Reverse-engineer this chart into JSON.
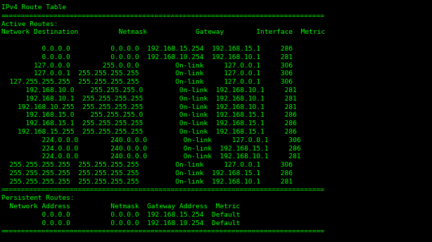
{
  "bg_color": "#000000",
  "text_color": "#00FF00",
  "figsize": [
    6.14,
    3.44
  ],
  "dpi": 100,
  "font_size": 6.8,
  "lines": [
    "IPv4 Route Table",
    "================================================================================",
    "Active Routes:",
    "Network Destination          Netmask            Gateway        Interface  Metric",
    "",
    "          0.0.0.0          0.0.0.0  192.168.15.254  192.168.15.1     286",
    "          0.0.0.0          0.0.0.0  192.168.10.254  192.168.10.1     281",
    "        127.0.0.0        255.0.0.0         On-link     127.0.0.1     306",
    "        127.0.0.1  255.255.255.255         On-link     127.0.0.1     306",
    "  127.255.255.255  255.255.255.255         On-link     127.0.0.1     306",
    "      192.168.10.0    255.255.255.0         On-link  192.168.10.1     281",
    "      192.168.10.1  255.255.255.255         On-link  192.168.10.1     281",
    "    192.168.10.255  255.255.255.255         On-link  192.168.10.1     281",
    "      192.168.15.0    255.255.255.0         On-link  192.168.15.1     286",
    "      192.168.15.1  255.255.255.255         On-link  192.168.15.1     286",
    "    192.168.15.255  255.255.255.255         On-link  192.168.15.1     286",
    "          224.0.0.0        240.0.0.0         On-link     127.0.0.1     306",
    "          224.0.0.0        240.0.0.0         On-link  192.168.15.1     286",
    "          224.0.0.0        240.0.0.0         On-link  192.168.10.1     281",
    "  255.255.255.255  255.255.255.255         On-link     127.0.0.1     306",
    "  255.255.255.255  255.255.255.255         On-link  192.168.15.1     286",
    "  255.255.255.255  255.255.255.255         On-link  192.168.10.1     281",
    "================================================================================",
    "Persistent Routes:",
    "  Network Address          Netmask  Gateway Address  Metric",
    "          0.0.0.0          0.0.0.0  192.168.15.254  Default",
    "          0.0.0.0          0.0.0.0  192.168.10.254  Default",
    "================================================================================"
  ]
}
